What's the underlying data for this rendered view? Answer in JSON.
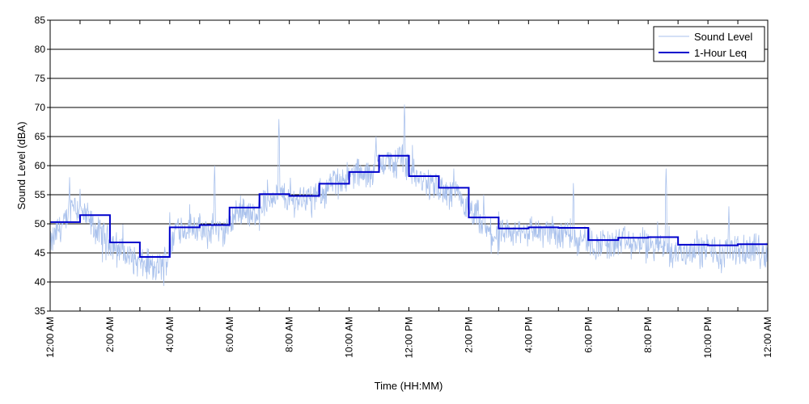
{
  "chart_data": {
    "type": "line",
    "xlabel": "Time (HH:MM)",
    "ylabel": "Sound Level (dBA)",
    "ylim": [
      35,
      85
    ],
    "yticks": [
      35,
      40,
      45,
      50,
      55,
      60,
      65,
      70,
      75,
      80,
      85
    ],
    "xlim": [
      0,
      24
    ],
    "xtick_hours": [
      0,
      2,
      4,
      6,
      8,
      10,
      12,
      14,
      16,
      18,
      20,
      22,
      24
    ],
    "xtick_labels": [
      "12:00 AM",
      "2:00 AM",
      "4:00 AM",
      "6:00 AM",
      "8:00 AM",
      "10:00 AM",
      "12:00 PM",
      "2:00 PM",
      "4:00 PM",
      "6:00 PM",
      "8:00 PM",
      "10:00 PM",
      "12:00 AM"
    ],
    "grid": "horizontal",
    "legend_position": "top-right",
    "series": [
      {
        "name": "Sound Level",
        "color": "#a9c1ec",
        "style": "thin-line",
        "values": [
          [
            0,
            46
          ],
          [
            0.25,
            49
          ],
          [
            0.5,
            50
          ],
          [
            0.75,
            54
          ],
          [
            1,
            52
          ],
          [
            1.25,
            51
          ],
          [
            1.5,
            49
          ],
          [
            1.75,
            48
          ],
          [
            2,
            47
          ],
          [
            2.25,
            46
          ],
          [
            2.5,
            45
          ],
          [
            2.75,
            44
          ],
          [
            3,
            43
          ],
          [
            3.25,
            43
          ],
          [
            3.5,
            42
          ],
          [
            3.75,
            43
          ],
          [
            4,
            45
          ],
          [
            4.25,
            50
          ],
          [
            4.5,
            49
          ],
          [
            4.75,
            50
          ],
          [
            5,
            49
          ],
          [
            5.25,
            48
          ],
          [
            5.5,
            50
          ],
          [
            5.75,
            48
          ],
          [
            6,
            50
          ],
          [
            6.25,
            52
          ],
          [
            6.5,
            53
          ],
          [
            6.75,
            51
          ],
          [
            7,
            53
          ],
          [
            7.25,
            54
          ],
          [
            7.5,
            55
          ],
          [
            7.75,
            55
          ],
          [
            8,
            54
          ],
          [
            8.25,
            54
          ],
          [
            8.5,
            55
          ],
          [
            8.75,
            54
          ],
          [
            9,
            55
          ],
          [
            9.25,
            56
          ],
          [
            9.5,
            57
          ],
          [
            9.75,
            58
          ],
          [
            10,
            58
          ],
          [
            10.25,
            59
          ],
          [
            10.5,
            58
          ],
          [
            10.75,
            59
          ],
          [
            11,
            60
          ],
          [
            11.25,
            61
          ],
          [
            11.5,
            60
          ],
          [
            11.75,
            62
          ],
          [
            12,
            60
          ],
          [
            12.25,
            58
          ],
          [
            12.5,
            57
          ],
          [
            12.75,
            57
          ],
          [
            13,
            56
          ],
          [
            13.25,
            55
          ],
          [
            13.5,
            55
          ],
          [
            13.75,
            54
          ],
          [
            14,
            52
          ],
          [
            14.25,
            51
          ],
          [
            14.5,
            49
          ],
          [
            14.75,
            48
          ],
          [
            15,
            48
          ],
          [
            15.25,
            48
          ],
          [
            15.5,
            48
          ],
          [
            15.75,
            49
          ],
          [
            16,
            49
          ],
          [
            16.25,
            49
          ],
          [
            16.5,
            48
          ],
          [
            16.75,
            49
          ],
          [
            17,
            48
          ],
          [
            17.25,
            49
          ],
          [
            17.5,
            48
          ],
          [
            17.75,
            48
          ],
          [
            18,
            47
          ],
          [
            18.25,
            46
          ],
          [
            18.5,
            47
          ],
          [
            18.75,
            46
          ],
          [
            19,
            47
          ],
          [
            19.25,
            47
          ],
          [
            19.5,
            46
          ],
          [
            19.75,
            47
          ],
          [
            20,
            46
          ],
          [
            20.25,
            46
          ],
          [
            20.5,
            47
          ],
          [
            20.75,
            45
          ],
          [
            21,
            45
          ],
          [
            21.25,
            45
          ],
          [
            21.5,
            46
          ],
          [
            21.75,
            45
          ],
          [
            22,
            46
          ],
          [
            22.25,
            45
          ],
          [
            22.5,
            44
          ],
          [
            22.75,
            46
          ],
          [
            23,
            46
          ],
          [
            23.25,
            45
          ],
          [
            23.5,
            46
          ],
          [
            23.75,
            45
          ],
          [
            24,
            45
          ]
        ],
        "peaks": [
          [
            0.65,
            58
          ],
          [
            1.0,
            56
          ],
          [
            4.0,
            52
          ],
          [
            5.5,
            60
          ],
          [
            7.65,
            68
          ],
          [
            10.9,
            65
          ],
          [
            11.85,
            70.5
          ],
          [
            13.5,
            59.5
          ],
          [
            14.5,
            55
          ],
          [
            17.5,
            57
          ],
          [
            20.6,
            59.5
          ],
          [
            22.7,
            53
          ]
        ]
      },
      {
        "name": "1-Hour Leq",
        "color": "#0000cc",
        "style": "step",
        "values": [
          [
            0,
            50.3
          ],
          [
            1,
            51.5
          ],
          [
            2,
            46.8
          ],
          [
            3,
            44.3
          ],
          [
            4,
            49.4
          ],
          [
            5,
            49.8
          ],
          [
            6,
            52.8
          ],
          [
            7,
            55.1
          ],
          [
            8,
            54.8
          ],
          [
            9,
            56.9
          ],
          [
            10,
            58.9
          ],
          [
            11,
            61.7
          ],
          [
            12,
            58.2
          ],
          [
            13,
            56.2
          ],
          [
            14,
            51.1
          ],
          [
            15,
            49.2
          ],
          [
            16,
            49.4
          ],
          [
            17,
            49.3
          ],
          [
            18,
            47.2
          ],
          [
            19,
            47.6
          ],
          [
            20,
            47.7
          ],
          [
            21,
            46.4
          ],
          [
            22,
            46.3
          ],
          [
            23,
            46.5
          ]
        ]
      }
    ]
  }
}
